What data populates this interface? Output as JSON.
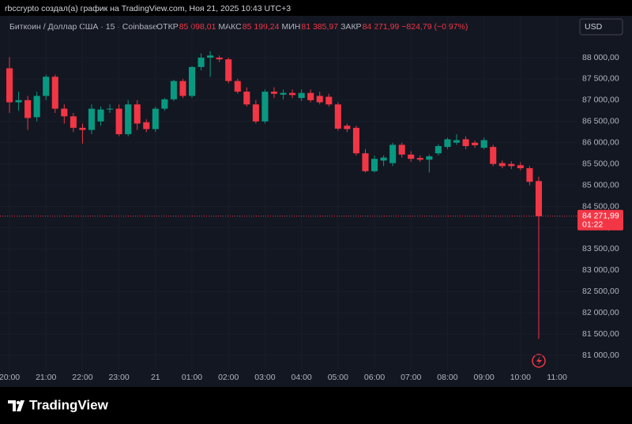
{
  "header": {
    "attribution": "rbccrypto создал(а) график на TradingView.com, Ноя 21, 2025 10:43 UTC+3",
    "symbol": "Биткоин / Доллар США · 15 · Coinbase",
    "ohlc": [
      {
        "label": "ОТКР",
        "value": "85 098,01"
      },
      {
        "label": "МАКС",
        "value": "85 199,24"
      },
      {
        "label": "МИН",
        "value": "81 385,97"
      },
      {
        "label": "ЗАКР",
        "value": "84 271,99"
      }
    ],
    "change": "−824,79 (−0,97%)",
    "currency": "USD"
  },
  "chart_data": {
    "type": "candlestick",
    "up_color": "#089981",
    "down_color": "#f23645",
    "grid": true,
    "x": [
      20,
      20.25,
      20.5,
      20.75,
      21,
      21.25,
      21.5,
      21.75,
      22,
      22.25,
      22.5,
      22.75,
      23,
      23.25,
      23.5,
      23.75,
      24,
      24.25,
      24.5,
      24.75,
      25,
      25.25,
      25.5,
      25.75,
      26,
      26.25,
      26.5,
      26.75,
      27,
      27.25,
      27.5,
      27.75,
      28,
      28.25,
      28.5,
      28.75,
      29,
      29.25,
      29.5,
      29.75,
      30,
      30.25,
      30.5,
      30.75,
      31,
      31.25,
      31.5,
      31.75,
      32,
      32.25,
      32.5,
      32.75,
      33,
      33.25,
      33.5,
      33.75,
      34,
      34.25,
      34.5
    ],
    "open": [
      87750,
      86950,
      87000,
      86600,
      87100,
      87550,
      86800,
      86620,
      86350,
      86300,
      86500,
      86780,
      86800,
      86200,
      86900,
      86480,
      86320,
      86800,
      87020,
      87450,
      87100,
      87780,
      88000,
      88000,
      87960,
      87450,
      87200,
      86900,
      86500,
      87200,
      87130,
      87170,
      87050,
      87170,
      87100,
      87080,
      86900,
      86400,
      86350,
      85750,
      85330,
      85580,
      85520,
      85950,
      85720,
      85640,
      85600,
      85750,
      85900,
      86000,
      86080,
      86000,
      85880,
      85900,
      85520,
      85500,
      85470,
      85400,
      85098.01
    ],
    "high": [
      88010,
      87200,
      87100,
      87200,
      87600,
      87600,
      86900,
      86700,
      86450,
      86900,
      86850,
      86900,
      86900,
      87000,
      87000,
      86550,
      86850,
      87050,
      87480,
      87500,
      87800,
      88100,
      88150,
      88050,
      88000,
      87500,
      87300,
      87000,
      87250,
      87300,
      87250,
      87250,
      87250,
      87250,
      87200,
      87150,
      86950,
      86450,
      86400,
      85850,
      85700,
      85700,
      86000,
      86000,
      85800,
      85700,
      85720,
      85960,
      86120,
      86200,
      86150,
      86050,
      86120,
      85950,
      85580,
      85560,
      85540,
      85450,
      85199.24
    ],
    "low": [
      86700,
      86750,
      86300,
      86500,
      87000,
      86700,
      86450,
      86250,
      85980,
      86200,
      86400,
      86700,
      86150,
      86150,
      86300,
      86250,
      86250,
      86750,
      86980,
      87050,
      87050,
      87700,
      87550,
      87900,
      87400,
      87150,
      86850,
      86450,
      86450,
      87050,
      87020,
      87050,
      86980,
      86950,
      86900,
      86850,
      86280,
      86250,
      85700,
      85300,
      85300,
      85450,
      85450,
      85650,
      85550,
      85550,
      85300,
      85700,
      85850,
      85950,
      85850,
      85880,
      85850,
      85450,
      85400,
      85380,
      85350,
      85000,
      81385.97
    ],
    "close": [
      86950,
      87000,
      86580,
      87100,
      87550,
      86800,
      86620,
      86350,
      86300,
      86800,
      86780,
      86800,
      86200,
      86900,
      86450,
      86320,
      86800,
      87020,
      87450,
      87100,
      87780,
      88000,
      88050,
      87960,
      87450,
      87200,
      86900,
      86500,
      87200,
      87150,
      87170,
      87120,
      87170,
      87000,
      86950,
      86900,
      86330,
      86320,
      85750,
      85330,
      85620,
      85650,
      85950,
      85720,
      85620,
      85600,
      85680,
      85920,
      86080,
      86060,
      85920,
      85940,
      86060,
      85500,
      85450,
      85450,
      85400,
      85080,
      84271.99
    ],
    "xlim": [
      19.74,
      35.54
    ],
    "xticks": [
      {
        "value": 20,
        "label": "20:00"
      },
      {
        "value": 21,
        "label": "21:00"
      },
      {
        "value": 22,
        "label": "22:00"
      },
      {
        "value": 23,
        "label": "23:00"
      },
      {
        "value": 24,
        "label": "21"
      },
      {
        "value": 25,
        "label": "01:00"
      },
      {
        "value": 26,
        "label": "02:00"
      },
      {
        "value": 27,
        "label": "03:00"
      },
      {
        "value": 28,
        "label": "04:00"
      },
      {
        "value": 29,
        "label": "05:00"
      },
      {
        "value": 30,
        "label": "06:00"
      },
      {
        "value": 31,
        "label": "07:00"
      },
      {
        "value": 32,
        "label": "08:00"
      },
      {
        "value": 33,
        "label": "09:00"
      },
      {
        "value": 34,
        "label": "10:00"
      },
      {
        "value": 35,
        "label": "11:00"
      }
    ],
    "ylim": [
      80666,
      88984
    ],
    "yticks": [
      {
        "value": 81000,
        "label": "81 000,00"
      },
      {
        "value": 81500,
        "label": "81 500,00"
      },
      {
        "value": 82000,
        "label": "82 000,00"
      },
      {
        "value": 82500,
        "label": "82 500,00"
      },
      {
        "value": 83000,
        "label": "83 000,00"
      },
      {
        "value": 83500,
        "label": "83 500,00"
      },
      {
        "value": 84000,
        "label": "84 000,00"
      },
      {
        "value": 84500,
        "label": "84 500,00"
      },
      {
        "value": 85000,
        "label": "85 000,00"
      },
      {
        "value": 85500,
        "label": "85 500,00"
      },
      {
        "value": 86000,
        "label": "86 000,00"
      },
      {
        "value": 86500,
        "label": "86 500,00"
      },
      {
        "value": 87000,
        "label": "87 000,00"
      },
      {
        "value": 87500,
        "label": "87 500,00"
      },
      {
        "value": 88000,
        "label": "88 000,00"
      }
    ],
    "last_price": {
      "value": 84271.99,
      "label": "84 271,99"
    },
    "countdown": "01:22"
  },
  "footer": {
    "brand": "TradingView"
  }
}
